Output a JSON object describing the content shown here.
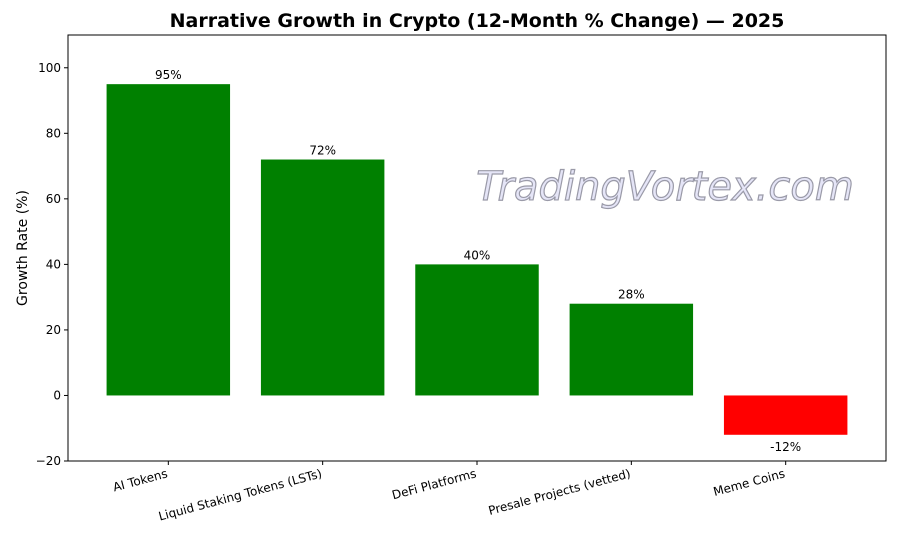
{
  "chart_data": {
    "type": "bar",
    "title": "Narrative Growth in Crypto (12-Month % Change) — 2025",
    "xlabel": "",
    "ylabel": "Growth Rate (%)",
    "categories": [
      "AI Tokens",
      "Liquid Staking Tokens (LSTs)",
      "DeFi Platforms",
      "Presale Projects (vetted)",
      "Meme Coins"
    ],
    "values": [
      95,
      72,
      40,
      28,
      -12
    ],
    "data_labels": [
      "95%",
      "72%",
      "40%",
      "28%",
      "-12%"
    ],
    "colors": [
      "#008000",
      "#008000",
      "#008000",
      "#008000",
      "#ff0000"
    ],
    "ylim": [
      -20,
      110
    ],
    "yticks": [
      -20,
      0,
      20,
      40,
      60,
      80,
      100
    ],
    "ytick_labels": [
      "−20",
      "0",
      "20",
      "40",
      "60",
      "80",
      "100"
    ],
    "grid": false,
    "xtick_rotation": 15
  },
  "watermark": "TradingVortex.com"
}
